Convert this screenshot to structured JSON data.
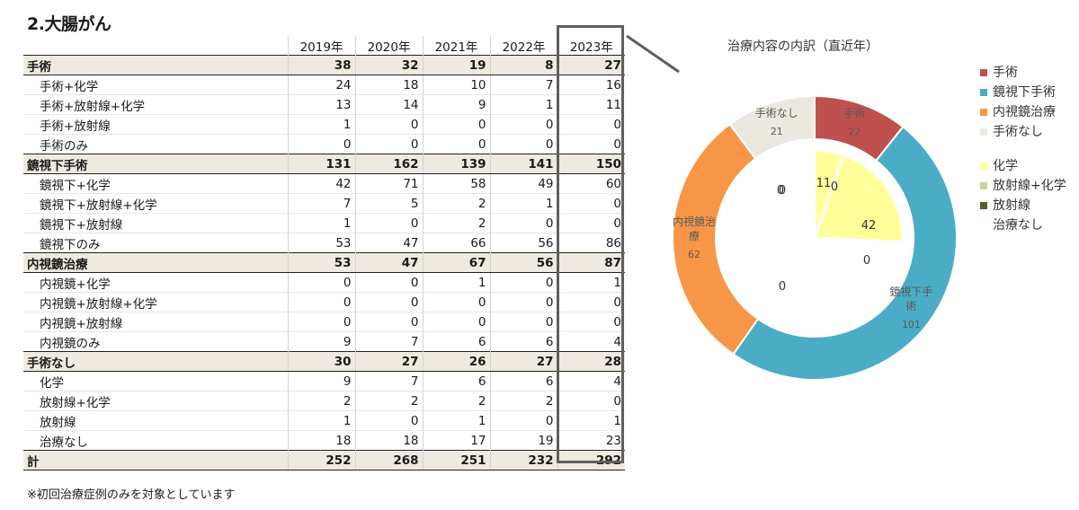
{
  "title": "2.大腸がん",
  "footnote": "※初回治療症例のみを対象としています",
  "table": {
    "years": [
      "2019年",
      "2020年",
      "2021年",
      "2022年",
      "2023年"
    ],
    "rows": [
      {
        "label": "手術",
        "group": true,
        "values": [
          "38",
          "32",
          "19",
          "8",
          "27"
        ]
      },
      {
        "label": "手術+化学",
        "group": false,
        "values": [
          "24",
          "18",
          "10",
          "7",
          "16"
        ]
      },
      {
        "label": "手術+放射線+化学",
        "group": false,
        "values": [
          "13",
          "14",
          "9",
          "1",
          "11"
        ]
      },
      {
        "label": "手術+放射線",
        "group": false,
        "values": [
          "1",
          "0",
          "0",
          "0",
          "0"
        ]
      },
      {
        "label": "手術のみ",
        "group": false,
        "values": [
          "0",
          "0",
          "0",
          "0",
          "0"
        ]
      },
      {
        "label": "鏡視下手術",
        "group": true,
        "values": [
          "131",
          "162",
          "139",
          "141",
          "150"
        ]
      },
      {
        "label": "鏡視下+化学",
        "group": false,
        "values": [
          "42",
          "71",
          "58",
          "49",
          "60"
        ]
      },
      {
        "label": "鏡視下+放射線+化学",
        "group": false,
        "values": [
          "7",
          "5",
          "2",
          "1",
          "0"
        ]
      },
      {
        "label": "鏡視下+放射線",
        "group": false,
        "values": [
          "1",
          "0",
          "2",
          "0",
          "0"
        ]
      },
      {
        "label": "鏡視下のみ",
        "group": false,
        "values": [
          "53",
          "47",
          "66",
          "56",
          "86"
        ]
      },
      {
        "label": "内視鏡治療",
        "group": true,
        "values": [
          "53",
          "47",
          "67",
          "56",
          "87"
        ]
      },
      {
        "label": "内視鏡+化学",
        "group": false,
        "values": [
          "0",
          "0",
          "1",
          "0",
          "1"
        ]
      },
      {
        "label": "内視鏡+放射線+化学",
        "group": false,
        "values": [
          "0",
          "0",
          "0",
          "0",
          "0"
        ]
      },
      {
        "label": "内視鏡+放射線",
        "group": false,
        "values": [
          "0",
          "0",
          "0",
          "0",
          "0"
        ]
      },
      {
        "label": "内視鏡のみ",
        "group": false,
        "values": [
          "9",
          "7",
          "6",
          "6",
          "4"
        ]
      },
      {
        "label": "手術なし",
        "group": true,
        "values": [
          "30",
          "27",
          "26",
          "27",
          "28"
        ]
      },
      {
        "label": "化学",
        "group": false,
        "values": [
          "9",
          "7",
          "6",
          "6",
          "4"
        ]
      },
      {
        "label": "放射線+化学",
        "group": false,
        "values": [
          "2",
          "2",
          "2",
          "2",
          "0"
        ]
      },
      {
        "label": "放射線",
        "group": false,
        "values": [
          "1",
          "0",
          "1",
          "0",
          "1"
        ]
      },
      {
        "label": "治療なし",
        "group": false,
        "values": [
          "18",
          "18",
          "17",
          "19",
          "23"
        ]
      },
      {
        "label": "計",
        "group": true,
        "values": [
          "252",
          "268",
          "251",
          "232",
          "292"
        ]
      }
    ]
  },
  "chart_data": {
    "type": "pie",
    "variant": "doughnut",
    "title": "治療内容の内訳（直近年）",
    "legend_position": "right",
    "outer_series": [
      {
        "name": "手術",
        "label_lines": [
          "手術"
        ],
        "value": 22,
        "color": "#c0504d"
      },
      {
        "name": "鏡視下手術",
        "label_lines": [
          "鏡視下手",
          "術"
        ],
        "value": 101,
        "color": "#4bacc6"
      },
      {
        "name": "内視鏡治療",
        "label_lines": [
          "内視鏡治",
          "療"
        ],
        "value": 62,
        "color": "#f79646"
      },
      {
        "name": "手術なし",
        "label_lines": [
          "手術なし"
        ],
        "value": 21,
        "color": "#ebe8df"
      }
    ],
    "inner_series": [
      {
        "name": "化学",
        "value": 11,
        "color": "#ffff99"
      },
      {
        "name": "化学",
        "value": 42,
        "color": "#ffff99"
      },
      {
        "name": "放射線+化学",
        "value": 0,
        "color": "#c3d69b"
      },
      {
        "name": "放射線",
        "value": 0,
        "color": "#4f6228"
      },
      {
        "name": "治療なし",
        "value": 0,
        "color": "#ffffff"
      }
    ],
    "legend": [
      {
        "label": "手術",
        "color": "#c0504d"
      },
      {
        "label": "鏡視下手術",
        "color": "#4bacc6"
      },
      {
        "label": "内視鏡治療",
        "color": "#f79646"
      },
      {
        "label": "手術なし",
        "color": "#ebe8df"
      },
      {
        "label": "化学",
        "color": "#ffff99"
      },
      {
        "label": "放射線+化学",
        "color": "#c3d69b"
      },
      {
        "label": "放射線",
        "color": "#4f6228"
      },
      {
        "label": "治療なし",
        "color": ""
      }
    ]
  }
}
